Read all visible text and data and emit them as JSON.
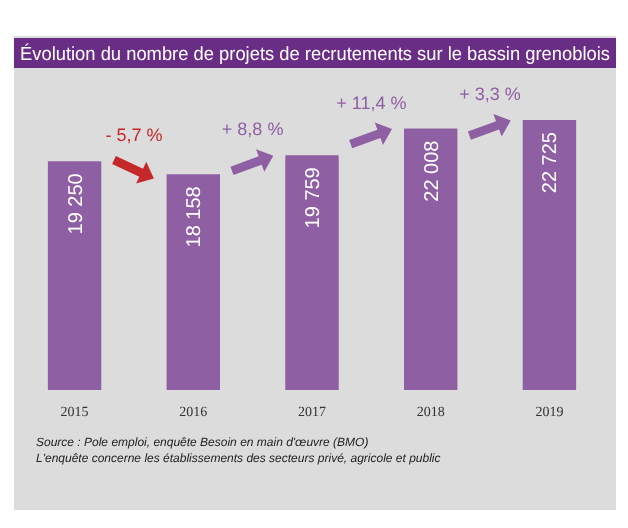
{
  "chart_data": {
    "type": "bar",
    "title": "Évolution du nombre de projets de recrutements sur le bassin grenoblois",
    "categories": [
      "2015",
      "2016",
      "2017",
      "2018",
      "2019"
    ],
    "values": [
      19250,
      18158,
      19759,
      22008,
      22725
    ],
    "value_labels": [
      "19 250",
      "18 158",
      "19 759",
      "22 008",
      "22 725"
    ],
    "color": "#8f5fa3",
    "tick_labels": "x",
    "annotations": [
      "- 5,7 %",
      "+ 8,8 %",
      "+ 11,4 %",
      "+ 3,3 %",
      "Source : Pole emploi, enquête Besoin en main d'œuvre (BMO)",
      "L'enquête concerne les établissements des secteurs privé, agricole et public"
    ]
  }
}
